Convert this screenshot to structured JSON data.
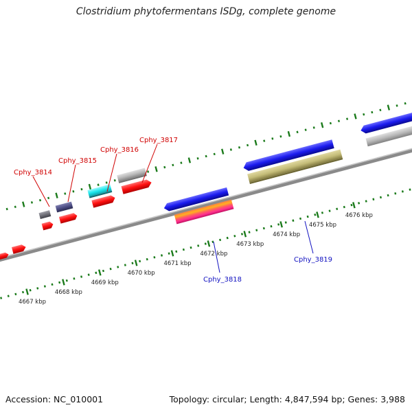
{
  "title": "Clostridium phytofermentans ISDg, complete genome",
  "footer": {
    "accession": "Accession: NC_010001",
    "stats": "Topology: circular; Length: 4,847,594 bp; Genes: 3,988"
  },
  "axis": {
    "ticks": [
      "4667 kbp",
      "4668 kbp",
      "4669 kbp",
      "4670 kbp",
      "4671 kbp",
      "4672 kbp",
      "4673 kbp",
      "4674 kbp",
      "4675 kbp",
      "4676 kbp"
    ]
  },
  "gene_labels": [
    {
      "name": "Cphy_3814",
      "color": "#d00000"
    },
    {
      "name": "Cphy_3815",
      "color": "#d00000"
    },
    {
      "name": "Cphy_3816",
      "color": "#d00000"
    },
    {
      "name": "Cphy_3817",
      "color": "#d00000"
    },
    {
      "name": "Cphy_3818",
      "color": "#1010c0"
    },
    {
      "name": "Cphy_3819",
      "color": "#1010c0"
    }
  ],
  "colors": {
    "backbone": "#8a8a8a",
    "dots": "#1a7a1a",
    "red": "#ff1a1a",
    "blue": "#1a1aee",
    "gray": "#b8b8b8",
    "olive": "#c8c080",
    "cyan": "#1ee8ee",
    "slate": "#505080",
    "darkgray": "#707078"
  }
}
